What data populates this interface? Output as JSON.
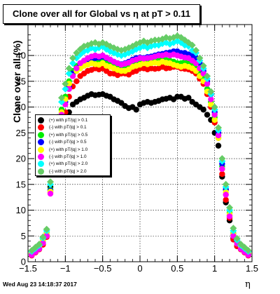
{
  "title": "Clone  over all for Global vs   η at pT > 0.11",
  "timestamp": "Wed Aug 23 14:18:37 2017",
  "chart_data": {
    "type": "scatter",
    "title": "Clone  over all for Global vs   η at pT > 0.11",
    "xlabel": "η",
    "ylabel": "Clone  over all (%)",
    "xlim": [
      -1.5,
      1.5
    ],
    "ylim": [
      0,
      46
    ],
    "x_ticks": [
      "−1.5",
      "−1",
      "−0.5",
      "0",
      "0.5",
      "1",
      "1.5"
    ],
    "y_ticks": [
      "0",
      "5",
      "10",
      "15",
      "20",
      "25",
      "30",
      "35",
      "40"
    ],
    "grid": true,
    "legend_position": "left",
    "x": [
      -1.45,
      -1.4,
      -1.35,
      -1.3,
      -1.25,
      -1.2,
      -1.15,
      -1.1,
      -1.05,
      -1.0,
      -0.95,
      -0.9,
      -0.85,
      -0.8,
      -0.75,
      -0.7,
      -0.65,
      -0.6,
      -0.55,
      -0.5,
      -0.45,
      -0.4,
      -0.35,
      -0.3,
      -0.25,
      -0.2,
      -0.15,
      -0.1,
      -0.05,
      0.0,
      0.05,
      0.1,
      0.15,
      0.2,
      0.25,
      0.3,
      0.35,
      0.4,
      0.45,
      0.5,
      0.55,
      0.6,
      0.65,
      0.7,
      0.75,
      0.8,
      0.85,
      0.9,
      0.95,
      1.0,
      1.05,
      1.1,
      1.15,
      1.2,
      1.25,
      1.3,
      1.35,
      1.4,
      1.45
    ],
    "series": [
      {
        "name": "(+) with pT/|q| > 0.1",
        "color": "#000000",
        "values": [
          1.5,
          2.0,
          2.5,
          3.5,
          5.0,
          14.5,
          19.0,
          24.0,
          27.0,
          28.0,
          29.0,
          30.5,
          31.0,
          31.5,
          31.8,
          32.2,
          32.5,
          32.3,
          32.4,
          32.5,
          32.2,
          32.0,
          31.5,
          31.2,
          30.8,
          30.2,
          29.8,
          30.0,
          29.5,
          30.5,
          30.8,
          31.0,
          30.8,
          31.0,
          31.2,
          31.5,
          31.6,
          31.8,
          31.5,
          32.0,
          32.0,
          31.6,
          31.8,
          31.0,
          30.5,
          30.0,
          29.5,
          28.5,
          27.5,
          25.0,
          22.5,
          16.5,
          11.5,
          8.0,
          4.5,
          3.0,
          2.5,
          2.0,
          1.5
        ]
      },
      {
        "name": "(-) with pT/|q| > 0.1",
        "color": "#ff0000",
        "values": [
          1.2,
          1.8,
          2.4,
          3.3,
          4.8,
          13.5,
          18.0,
          23.0,
          27.5,
          29.0,
          32.0,
          34.0,
          35.0,
          36.0,
          36.5,
          37.0,
          37.2,
          37.5,
          37.3,
          37.5,
          37.0,
          36.5,
          36.5,
          36.2,
          36.5,
          36.5,
          36.3,
          36.8,
          37.0,
          37.5,
          37.5,
          37.3,
          37.5,
          37.4,
          37.5,
          37.8,
          37.5,
          37.6,
          37.8,
          37.8,
          37.5,
          37.4,
          37.3,
          37.0,
          36.5,
          35.5,
          34.5,
          32.5,
          30.0,
          27.0,
          24.0,
          17.0,
          12.0,
          8.5,
          4.3,
          3.0,
          2.4,
          1.8,
          1.2
        ]
      },
      {
        "name": "(+) with pT/|q| > 0.5",
        "color": "#00ee00",
        "values": [
          1.8,
          2.4,
          3.0,
          4.2,
          5.6,
          14.0,
          20.5,
          26.5,
          29.5,
          32.0,
          35.0,
          37.0,
          38.0,
          38.5,
          38.8,
          39.0,
          39.0,
          39.2,
          39.0,
          39.0,
          38.8,
          38.5,
          38.4,
          38.2,
          38.0,
          38.0,
          38.2,
          38.5,
          38.8,
          39.0,
          39.0,
          39.2,
          39.0,
          39.2,
          39.0,
          39.3,
          39.1,
          39.0,
          38.8,
          38.5,
          38.5,
          38.8,
          38.5,
          38.0,
          37.5,
          36.5,
          35.5,
          33.5,
          31.0,
          28.0,
          24.5,
          18.5,
          14.0,
          9.5,
          5.5,
          3.8,
          3.0,
          2.4,
          1.8
        ]
      },
      {
        "name": "(-) with pT/|q| > 0.5",
        "color": "#0000ff",
        "values": [
          1.4,
          2.0,
          2.6,
          3.8,
          5.2,
          13.8,
          19.5,
          25.0,
          28.8,
          31.0,
          34.0,
          36.5,
          37.5,
          38.2,
          38.8,
          39.2,
          39.4,
          39.5,
          39.6,
          39.8,
          39.5,
          39.2,
          38.8,
          38.5,
          38.3,
          38.5,
          38.8,
          39.2,
          39.5,
          39.6,
          39.5,
          39.7,
          39.8,
          40.0,
          40.2,
          40.3,
          40.5,
          40.6,
          40.8,
          40.8,
          40.5,
          40.5,
          40.2,
          40.0,
          39.5,
          38.5,
          37.0,
          35.0,
          32.5,
          29.0,
          25.0,
          19.0,
          14.0,
          9.0,
          5.2,
          3.8,
          2.6,
          2.0,
          1.4
        ]
      },
      {
        "name": "(+) with pT/|q| > 1.0",
        "color": "#ffff00",
        "values": [
          1.6,
          2.2,
          2.8,
          4.0,
          5.4,
          13.6,
          20.0,
          26.0,
          29.0,
          31.5,
          34.5,
          36.0,
          37.0,
          37.5,
          38.0,
          38.2,
          38.5,
          38.3,
          38.2,
          38.5,
          38.0,
          37.8,
          37.5,
          37.2,
          37.0,
          37.0,
          37.3,
          37.8,
          38.0,
          38.2,
          38.5,
          38.3,
          38.5,
          38.6,
          38.5,
          38.8,
          38.6,
          38.5,
          38.2,
          38.0,
          37.8,
          38.0,
          37.8,
          37.5,
          37.0,
          36.0,
          35.0,
          33.0,
          30.5,
          27.5,
          24.0,
          18.0,
          13.5,
          9.2,
          5.3,
          3.6,
          2.8,
          2.2,
          1.6
        ]
      },
      {
        "name": "(-) with pT/|q| > 1.0",
        "color": "#ff00ff",
        "values": [
          1.3,
          1.9,
          2.5,
          3.6,
          5.0,
          13.2,
          19.0,
          24.5,
          28.5,
          30.5,
          33.5,
          36.0,
          37.5,
          38.5,
          39.0,
          39.5,
          39.8,
          40.0,
          39.8,
          40.0,
          39.6,
          39.2,
          38.8,
          38.5,
          38.2,
          38.4,
          38.6,
          39.0,
          39.2,
          39.5,
          39.4,
          39.5,
          39.6,
          39.8,
          40.0,
          40.0,
          40.2,
          40.0,
          40.2,
          40.0,
          39.8,
          39.6,
          39.5,
          39.0,
          38.5,
          37.5,
          36.5,
          34.5,
          31.5,
          28.5,
          24.5,
          18.0,
          13.0,
          8.8,
          5.0,
          3.5,
          2.5,
          1.9,
          1.3
        ]
      },
      {
        "name": "(+) with pT/|q| > 2.0",
        "color": "#00ffff",
        "values": [
          2.0,
          2.6,
          3.2,
          4.6,
          6.0,
          15.0,
          21.5,
          27.5,
          31.0,
          33.5,
          36.5,
          38.5,
          39.5,
          40.2,
          40.8,
          41.0,
          41.5,
          41.2,
          41.5,
          41.8,
          41.2,
          40.8,
          40.5,
          40.2,
          40.0,
          40.2,
          40.5,
          40.8,
          41.2,
          41.5,
          41.8,
          41.5,
          41.8,
          42.0,
          42.0,
          42.3,
          42.5,
          42.2,
          42.5,
          42.8,
          42.5,
          42.0,
          41.8,
          41.0,
          40.5,
          39.0,
          37.5,
          35.5,
          32.5,
          29.5,
          25.5,
          19.5,
          14.5,
          10.0,
          6.0,
          4.2,
          3.2,
          2.6,
          2.0
        ]
      },
      {
        "name": "(-) with pT/|q| > 2.0",
        "color": "#66cc66",
        "values": [
          2.2,
          2.8,
          3.4,
          4.8,
          6.3,
          15.5,
          22.0,
          28.0,
          31.8,
          34.5,
          37.5,
          39.5,
          40.5,
          41.2,
          41.8,
          42.0,
          42.3,
          42.5,
          42.2,
          42.5,
          42.2,
          41.8,
          41.5,
          41.2,
          41.0,
          41.2,
          41.5,
          41.8,
          42.2,
          42.5,
          42.8,
          42.5,
          42.8,
          43.0,
          43.0,
          43.2,
          43.5,
          43.3,
          43.5,
          43.8,
          43.5,
          43.0,
          42.5,
          42.0,
          41.0,
          39.5,
          38.0,
          36.0,
          33.0,
          30.0,
          26.0,
          20.0,
          15.0,
          10.5,
          6.5,
          4.5,
          3.4,
          2.8,
          2.2
        ]
      }
    ]
  }
}
